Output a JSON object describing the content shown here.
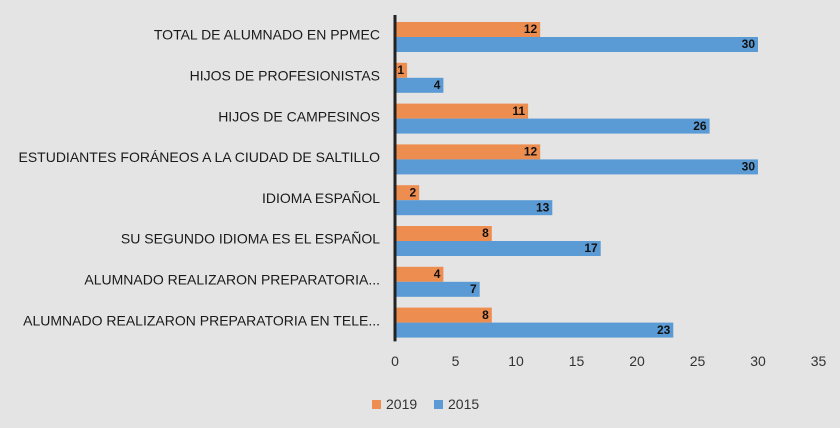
{
  "chart_data": {
    "type": "bar",
    "orientation": "horizontal",
    "categories": [
      "TOTAL DE ALUMNADO EN PPMEC",
      "HIJOS DE PROFESIONISTAS",
      "HIJOS DE CAMPESINOS",
      "ESTUDIANTES FORÁNEOS A LA CIUDAD DE SALTILLO",
      "IDIOMA ESPAÑOL",
      "SU SEGUNDO IDIOMA ES EL ESPAÑOL",
      "ALUMNADO REALIZARON PREPARATORIA...",
      "ALUMNADO REALIZARON PREPARATORIA EN TELE..."
    ],
    "series": [
      {
        "name": "2019",
        "color": "#ed8d4f",
        "values": [
          12,
          1,
          11,
          12,
          2,
          8,
          4,
          8
        ]
      },
      {
        "name": "2015",
        "color": "#5b9bd5",
        "values": [
          30,
          4,
          26,
          30,
          13,
          17,
          7,
          23
        ]
      }
    ],
    "xlim": [
      0,
      35
    ],
    "xticks": [
      0,
      5,
      10,
      15,
      20,
      25,
      30,
      35
    ],
    "grid": false,
    "legend_position": "bottom",
    "data_labels": true,
    "title": "",
    "xlabel": "",
    "ylabel": ""
  }
}
